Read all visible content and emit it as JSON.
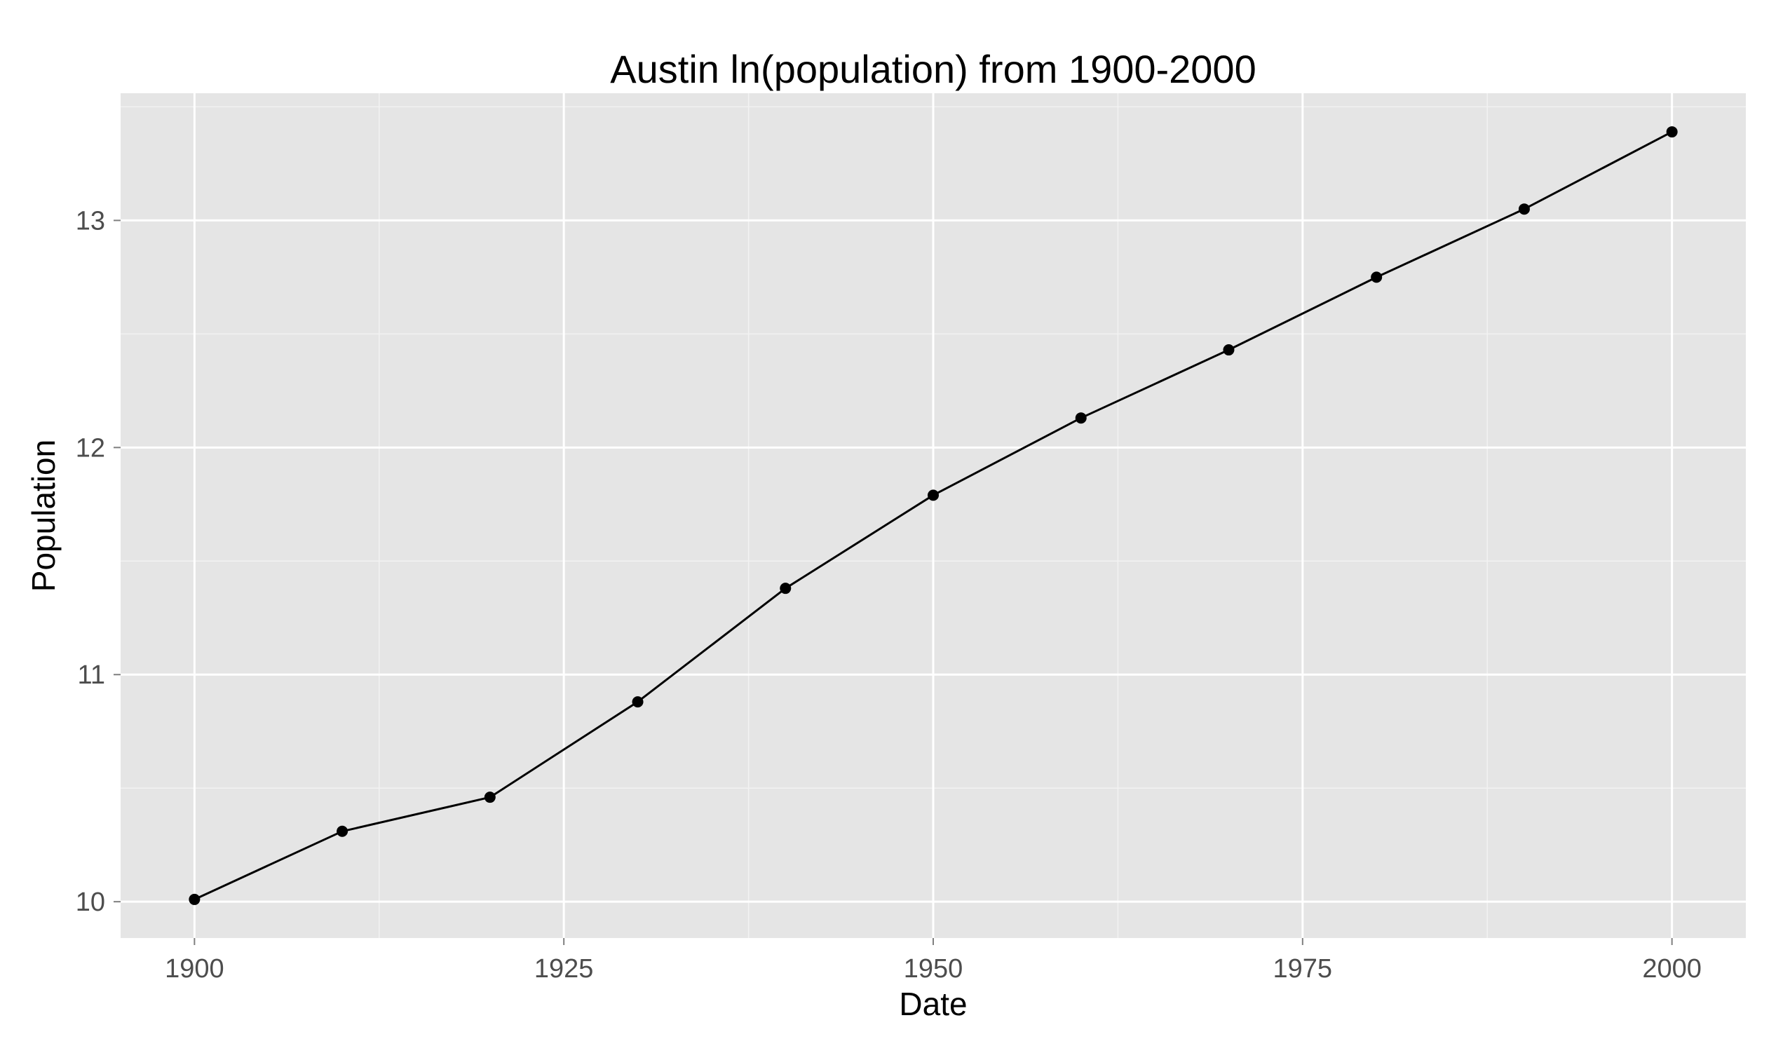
{
  "chart_data": {
    "type": "line",
    "title": "Austin ln(population) from 1900-2000",
    "xlabel": "Date",
    "ylabel": "Population",
    "xlim": [
      1895,
      2005
    ],
    "ylim": [
      9.84,
      13.56
    ],
    "x_ticks": [
      1900,
      1925,
      1950,
      1975,
      2000
    ],
    "x_tick_labels": [
      "1900",
      "1925",
      "1950",
      "1975",
      "2000"
    ],
    "x_minor_ticks": [
      1912.5,
      1937.5,
      1962.5,
      1987.5
    ],
    "y_ticks": [
      10,
      11,
      12,
      13
    ],
    "y_tick_labels": [
      "10",
      "11",
      "12",
      "13"
    ],
    "y_minor_ticks": [
      10.5,
      11.5,
      12.5,
      13.5
    ],
    "grid": true,
    "legend": "none",
    "series": [
      {
        "x": [
          1900,
          1910,
          1920,
          1930,
          1940,
          1950,
          1960,
          1970,
          1980,
          1990,
          2000
        ],
        "values": [
          10.01,
          10.31,
          10.46,
          10.88,
          11.38,
          11.79,
          12.13,
          12.43,
          12.75,
          13.05,
          13.39
        ]
      }
    ],
    "colors": {
      "panel_background": "#e5e5e5",
      "grid_major": "#ffffff",
      "grid_minor": "#f2f2f2",
      "series_line": "#000000",
      "tick_text": "#4d4d4d"
    }
  }
}
